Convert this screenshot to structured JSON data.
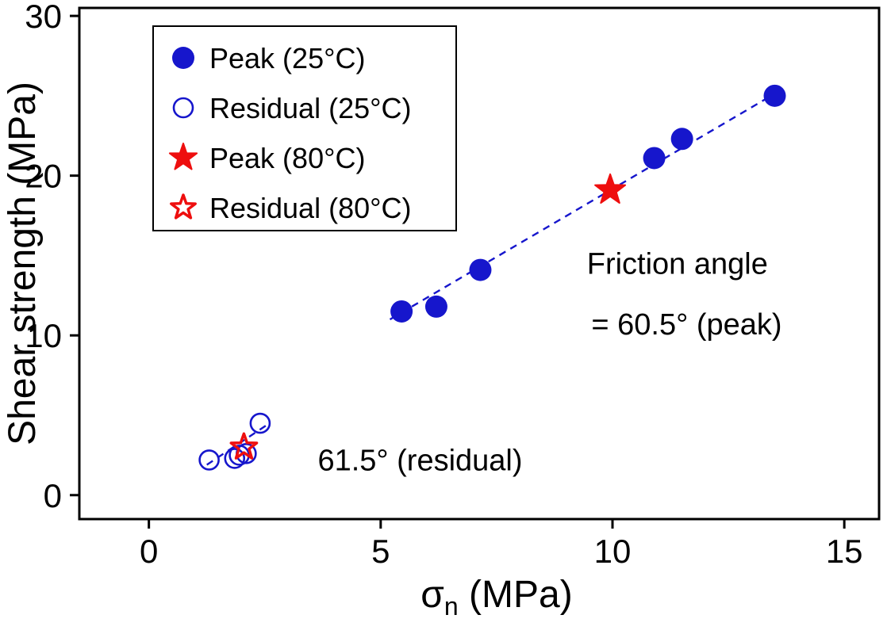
{
  "chart_data": {
    "type": "scatter",
    "xlabel": {
      "symbol": "σ",
      "subscript": "n",
      "rest": " (MPa)"
    },
    "ylabel": "Shear strength (MPa)",
    "xlim": [
      -1.5,
      15.75
    ],
    "ylim": [
      -1.5,
      30.5
    ],
    "xticks": [
      0,
      5,
      10,
      15
    ],
    "yticks": [
      0,
      10,
      20,
      30
    ],
    "colors": {
      "blue": "#1616cc",
      "red": "#ee0e0e",
      "axis": "#000000"
    },
    "series": [
      {
        "name": "Peak (25°C)",
        "marker": "filled-circle",
        "color": "blue",
        "points": [
          [
            5.45,
            11.5
          ],
          [
            6.2,
            11.8
          ],
          [
            7.15,
            14.1
          ],
          [
            10.9,
            21.1
          ],
          [
            11.5,
            22.3
          ],
          [
            13.5,
            25.0
          ]
        ]
      },
      {
        "name": "Residual (25°C)",
        "marker": "open-circle",
        "color": "blue",
        "points": [
          [
            1.3,
            2.2
          ],
          [
            1.85,
            2.3
          ],
          [
            1.95,
            2.5
          ],
          [
            2.1,
            2.6
          ],
          [
            2.4,
            4.5
          ]
        ]
      },
      {
        "name": "Peak (80°C)",
        "marker": "filled-star",
        "color": "red",
        "points": [
          [
            9.95,
            19.1
          ]
        ]
      },
      {
        "name": "Residual (80°C)",
        "marker": "open-star",
        "color": "red",
        "points": [
          [
            2.05,
            3.0
          ]
        ]
      }
    ],
    "fit_lines": [
      {
        "x1": 5.2,
        "y1": 11.0,
        "x2": 13.6,
        "y2": 25.3,
        "color": "blue",
        "dash": true
      },
      {
        "x1": 1.25,
        "y1": 1.9,
        "x2": 2.55,
        "y2": 4.4,
        "color": "blue",
        "dash": true
      }
    ],
    "annotations": [
      {
        "text": "Friction angle",
        "x": 11.4,
        "y": 14.5
      },
      {
        "text": "= 60.5° (peak)",
        "x": 11.6,
        "y": 10.7
      },
      {
        "text": "61.5° (residual)",
        "x": 5.85,
        "y": 2.2
      }
    ],
    "legend": {
      "position": "top-left",
      "entries": [
        {
          "label": "Peak (25°C)",
          "marker": "filled-circle",
          "color": "blue"
        },
        {
          "label": "Residual (25°C)",
          "marker": "open-circle",
          "color": "blue"
        },
        {
          "label": "Peak (80°C)",
          "marker": "filled-star",
          "color": "red"
        },
        {
          "label": "Residual (80°C)",
          "marker": "open-star",
          "color": "red"
        }
      ]
    }
  }
}
